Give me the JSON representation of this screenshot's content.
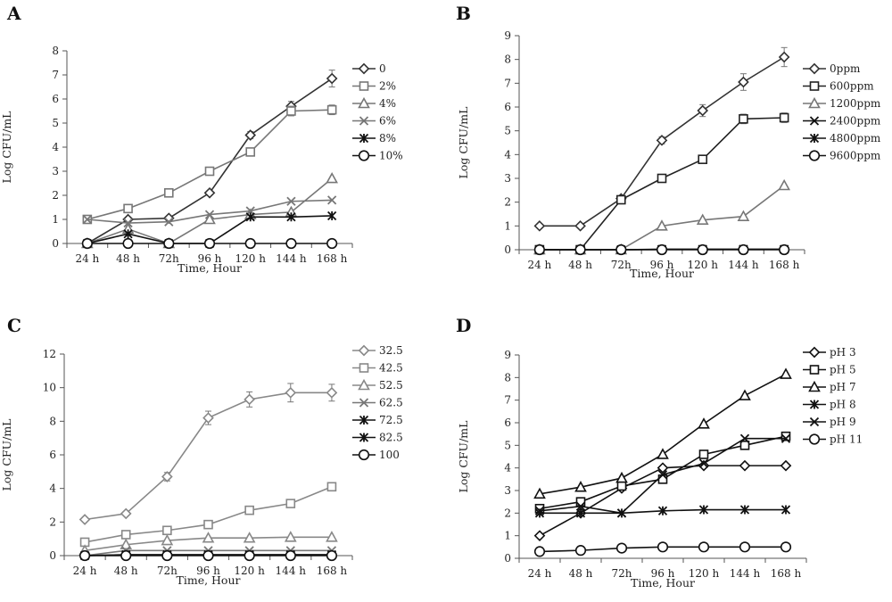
{
  "chart_data": [
    {
      "type": "line",
      "panel": "A",
      "categories": [
        "24 h",
        "48 h",
        "72h",
        "96 h",
        "120 h",
        "144 h",
        "168 h"
      ],
      "xlabel": "Time, Hour",
      "ylabel": "Log CFU/mL",
      "ylim": [
        0,
        8
      ],
      "yticks": [
        0,
        1,
        2,
        3,
        4,
        5,
        6,
        7,
        8
      ],
      "legend_position": "right",
      "series": [
        {
          "name": "0",
          "marker": "diamond",
          "color": "#333333",
          "values": [
            0,
            1.0,
            1.05,
            2.1,
            4.5,
            5.7,
            6.85
          ],
          "errors": [
            0,
            0,
            0,
            0,
            0.15,
            0.2,
            0.35
          ]
        },
        {
          "name": "2%",
          "marker": "square",
          "color": "#777777",
          "values": [
            1.0,
            1.45,
            2.1,
            3.0,
            3.8,
            5.5,
            5.55
          ],
          "errors": [
            0,
            0,
            0,
            0,
            0,
            0.2,
            0.2
          ]
        },
        {
          "name": "4%",
          "marker": "triangle",
          "color": "#777777",
          "values": [
            0,
            0.6,
            0,
            1.0,
            1.2,
            1.3,
            2.7
          ],
          "errors": [
            0,
            0,
            0,
            0,
            0,
            0,
            0
          ]
        },
        {
          "name": "6%",
          "marker": "x",
          "color": "#777777",
          "values": [
            1.0,
            0.85,
            0.9,
            1.2,
            1.35,
            1.75,
            1.8
          ],
          "errors": [
            0,
            0,
            0,
            0,
            0,
            0,
            0
          ]
        },
        {
          "name": "8%",
          "marker": "star",
          "color": "#111111",
          "values": [
            0,
            0.4,
            0,
            0,
            1.1,
            1.1,
            1.15
          ],
          "errors": [
            0,
            0,
            0,
            0,
            0,
            0,
            0
          ]
        },
        {
          "name": "10%",
          "marker": "circle",
          "color": "#111111",
          "values": [
            0,
            0,
            0,
            0,
            0,
            0,
            0
          ],
          "errors": [
            0,
            0,
            0,
            0,
            0,
            0,
            0
          ]
        }
      ]
    },
    {
      "type": "line",
      "panel": "B",
      "categories": [
        "24 h",
        "48 h",
        "72h",
        "96 h",
        "120 h",
        "144 h",
        "168 h"
      ],
      "xlabel": "Time, Hour",
      "ylabel": "Log CFU/mL",
      "ylim": [
        0,
        9
      ],
      "yticks": [
        0,
        1,
        2,
        3,
        4,
        5,
        6,
        7,
        8,
        9
      ],
      "legend_position": "right",
      "series": [
        {
          "name": "0ppm",
          "marker": "diamond",
          "color": "#333333",
          "values": [
            1.0,
            1.0,
            2.15,
            4.6,
            5.85,
            7.05,
            8.1
          ],
          "errors": [
            0,
            0,
            0,
            0.15,
            0.25,
            0.35,
            0.4
          ]
        },
        {
          "name": "600ppm",
          "marker": "square",
          "color": "#222222",
          "values": [
            0,
            0,
            2.1,
            3.0,
            3.8,
            5.5,
            5.55
          ],
          "errors": [
            0,
            0,
            0,
            0,
            0,
            0.2,
            0.2
          ]
        },
        {
          "name": "1200ppm",
          "marker": "triangle",
          "color": "#777777",
          "values": [
            0,
            0,
            0,
            1.0,
            1.25,
            1.4,
            2.7
          ],
          "errors": [
            0,
            0,
            0,
            0,
            0,
            0,
            0
          ]
        },
        {
          "name": "2400ppm",
          "marker": "x",
          "color": "#111111",
          "values": [
            0,
            0,
            0,
            0.02,
            0.02,
            0.02,
            0.02
          ],
          "errors": [
            0,
            0,
            0,
            0,
            0,
            0,
            0
          ]
        },
        {
          "name": "4800ppm",
          "marker": "star",
          "color": "#111111",
          "values": [
            0,
            0,
            0,
            0.01,
            0.01,
            0.01,
            0.01
          ],
          "errors": [
            0,
            0,
            0,
            0,
            0,
            0,
            0
          ]
        },
        {
          "name": "9600ppm",
          "marker": "circle",
          "color": "#111111",
          "values": [
            0,
            0,
            0,
            0,
            0,
            0,
            0
          ],
          "errors": [
            0,
            0,
            0,
            0,
            0,
            0,
            0
          ]
        }
      ]
    },
    {
      "type": "line",
      "panel": "C",
      "categories": [
        "24 h",
        "48 h",
        "72h",
        "96 h",
        "120 h",
        "144 h",
        "168 h"
      ],
      "xlabel": "Time, Hour",
      "ylabel": "Log CFU/mL",
      "ylim": [
        0,
        12
      ],
      "yticks": [
        0,
        2,
        4,
        6,
        8,
        10,
        12
      ],
      "legend_position": "right",
      "series": [
        {
          "name": "32.5",
          "marker": "diamond",
          "color": "#888888",
          "values": [
            2.15,
            2.5,
            4.7,
            8.2,
            9.3,
            9.7,
            9.7
          ],
          "errors": [
            0,
            0,
            0.25,
            0.4,
            0.45,
            0.55,
            0.5
          ]
        },
        {
          "name": "42.5",
          "marker": "square",
          "color": "#888888",
          "values": [
            0.8,
            1.25,
            1.5,
            1.85,
            2.7,
            3.1,
            4.1
          ],
          "errors": [
            0,
            0,
            0,
            0,
            0,
            0,
            0
          ]
        },
        {
          "name": "52.5",
          "marker": "triangle",
          "color": "#888888",
          "values": [
            0.3,
            0.65,
            0.9,
            1.05,
            1.05,
            1.1,
            1.1
          ],
          "errors": [
            0,
            0,
            0,
            0,
            0,
            0,
            0
          ]
        },
        {
          "name": "62.5",
          "marker": "x",
          "color": "#777777",
          "values": [
            0,
            0.3,
            0.3,
            0.3,
            0.3,
            0.3,
            0.3
          ],
          "errors": [
            0,
            0,
            0,
            0,
            0,
            0,
            0
          ]
        },
        {
          "name": "72.5",
          "marker": "star",
          "color": "#111111",
          "values": [
            0,
            0.05,
            0.05,
            0.05,
            0.05,
            0.05,
            0.05
          ],
          "errors": [
            0,
            0,
            0,
            0,
            0,
            0,
            0
          ]
        },
        {
          "name": "82.5",
          "marker": "star",
          "color": "#111111",
          "values": [
            0,
            0.05,
            0.05,
            0.05,
            0.05,
            0.05,
            0.05
          ],
          "errors": [
            0,
            0,
            0,
            0,
            0,
            0,
            0
          ]
        },
        {
          "name": "100",
          "marker": "circle",
          "color": "#111111",
          "values": [
            0,
            0,
            0,
            0,
            0,
            0,
            0
          ],
          "errors": [
            0,
            0,
            0,
            0,
            0,
            0,
            0
          ]
        }
      ]
    },
    {
      "type": "line",
      "panel": "D",
      "categories": [
        "24 h",
        "48 h",
        "72h",
        "96 h",
        "120 h",
        "144 h",
        "168 h"
      ],
      "xlabel": "Time, Hour",
      "ylabel": "Log CFU/mL",
      "ylim": [
        0,
        9
      ],
      "yticks": [
        0,
        1,
        2,
        3,
        4,
        5,
        6,
        7,
        8,
        9
      ],
      "legend_position": "right",
      "series": [
        {
          "name": "pH 3",
          "marker": "diamond",
          "color": "#111111",
          "values": [
            1.0,
            2.0,
            3.1,
            4.0,
            4.1,
            4.1,
            4.1
          ],
          "errors": [
            0,
            0,
            0,
            0,
            0,
            0,
            0
          ]
        },
        {
          "name": "pH 5",
          "marker": "square",
          "color": "#111111",
          "values": [
            2.2,
            2.5,
            3.2,
            3.5,
            4.6,
            5.0,
            5.4
          ],
          "errors": [
            0,
            0,
            0,
            0,
            0,
            0,
            0
          ]
        },
        {
          "name": "pH 7",
          "marker": "triangle",
          "color": "#111111",
          "values": [
            2.85,
            3.15,
            3.55,
            4.6,
            5.95,
            7.2,
            8.15
          ],
          "errors": [
            0,
            0,
            0,
            0,
            0,
            0,
            0
          ]
        },
        {
          "name": "pH 8",
          "marker": "star",
          "color": "#111111",
          "values": [
            2.0,
            2.0,
            2.0,
            2.1,
            2.15,
            2.15,
            2.15
          ],
          "errors": [
            0,
            0,
            0,
            0,
            0,
            0,
            0
          ]
        },
        {
          "name": "pH 9",
          "marker": "x",
          "color": "#111111",
          "values": [
            2.1,
            2.3,
            2.0,
            3.7,
            4.2,
            5.3,
            5.3
          ],
          "errors": [
            0,
            0,
            0,
            0,
            0,
            0,
            0
          ]
        },
        {
          "name": "pH 11",
          "marker": "circle",
          "color": "#111111",
          "values": [
            0.3,
            0.35,
            0.45,
            0.5,
            0.5,
            0.5,
            0.5
          ],
          "errors": [
            0,
            0,
            0,
            0,
            0,
            0,
            0
          ]
        }
      ]
    }
  ]
}
